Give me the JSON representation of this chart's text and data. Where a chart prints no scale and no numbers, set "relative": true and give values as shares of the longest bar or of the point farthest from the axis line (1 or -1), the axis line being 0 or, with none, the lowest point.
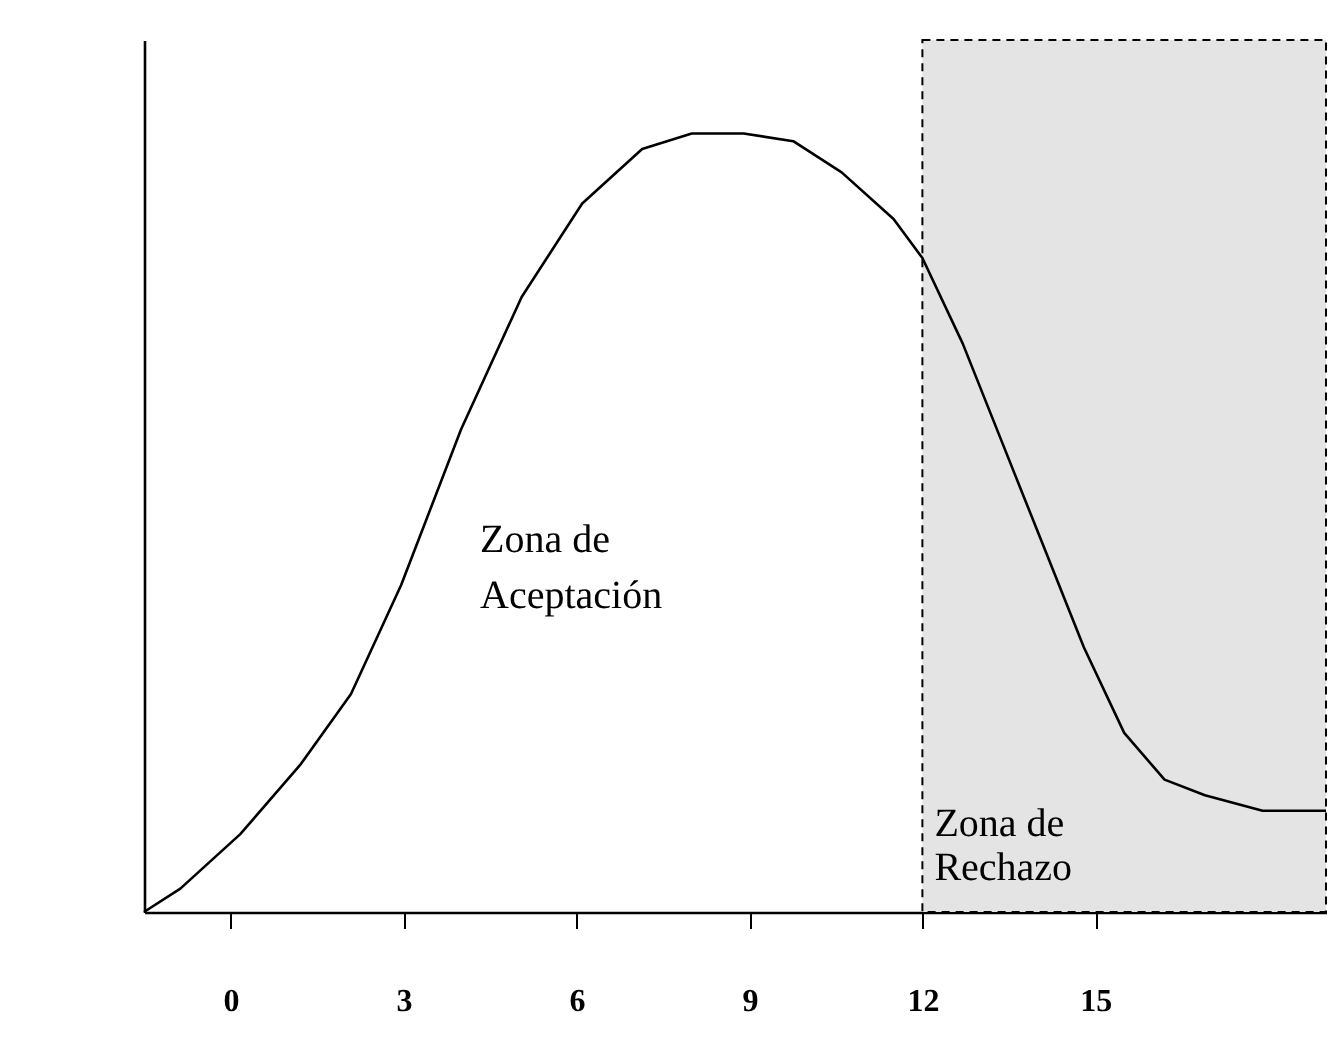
{
  "chart_data": {
    "type": "line",
    "relative": true,
    "x": [
      -1.5,
      -0.87,
      0.17,
      1.22,
      2.09,
      2.96,
      4.0,
      5.05,
      6.1,
      7.14,
      8.0,
      8.9,
      9.76,
      10.6,
      11.5,
      12.0,
      12.7,
      13.4,
      14.1,
      14.8,
      15.5,
      16.2,
      16.9,
      17.9,
      19
    ],
    "series": [
      {
        "color": "#000000",
        "values": [
          0,
          0.03,
          0.1,
          0.19,
          0.28,
          0.42,
          0.62,
          0.79,
          0.91,
          0.98,
          1,
          1,
          0.99,
          0.95,
          0.89,
          0.84,
          0.73,
          0.6,
          0.47,
          0.34,
          0.23,
          0.17,
          0.15,
          0.13,
          0.13
        ]
      }
    ],
    "xlim": [
      -1.5,
      19
    ],
    "xticks": [
      0,
      3,
      6,
      9,
      12,
      15
    ],
    "bands": [
      {
        "axis": "x",
        "from": 12,
        "to": 19,
        "label": "Zona de\nRechazo"
      }
    ],
    "annotations": [
      "Zona de\nAceptación"
    ],
    "marker": "none",
    "line_style": "solid"
  }
}
